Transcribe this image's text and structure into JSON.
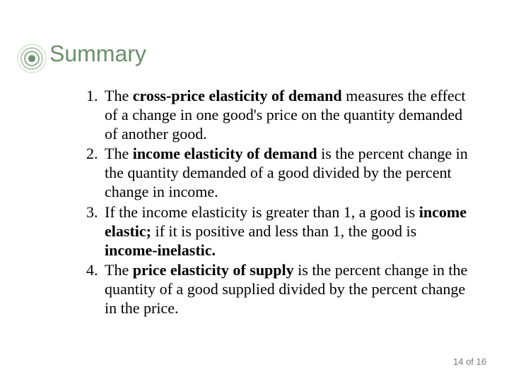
{
  "title": "Summary",
  "title_color": "#6b8f6b",
  "bullet_deco": {
    "ring_colors": [
      "#dfe9de",
      "#b7ccb5",
      "#8fae8c",
      "#6b8f6b"
    ],
    "center_color": "#6b8f6b"
  },
  "items": [
    {
      "segments": [
        {
          "text": "The ",
          "bold": false
        },
        {
          "text": "cross-price elasticity of demand",
          "bold": true
        },
        {
          "text": " measures the effect of a change in one good's price on the quantity demanded of another good.",
          "bold": false
        }
      ]
    },
    {
      "segments": [
        {
          "text": "The ",
          "bold": false
        },
        {
          "text": "income elasticity of demand",
          "bold": true
        },
        {
          "text": " is the percent change in the quantity demanded of a good divided by the percent change in income.",
          "bold": false
        }
      ]
    },
    {
      "segments": [
        {
          "text": "If the income elasticity is greater than 1, a good is ",
          "bold": false
        },
        {
          "text": "income elastic;",
          "bold": true
        },
        {
          "text": " if it is positive and less than 1, the good is ",
          "bold": false
        },
        {
          "text": "income-inelastic.",
          "bold": true
        }
      ]
    },
    {
      "segments": [
        {
          "text": "The ",
          "bold": false
        },
        {
          "text": "price elasticity of supply",
          "bold": true
        },
        {
          "text": " is the percent change in the quantity of a good supplied divided by the percent change in the price.",
          "bold": false
        }
      ]
    }
  ],
  "footer": {
    "current": "14",
    "of": "of",
    "total": "16"
  }
}
